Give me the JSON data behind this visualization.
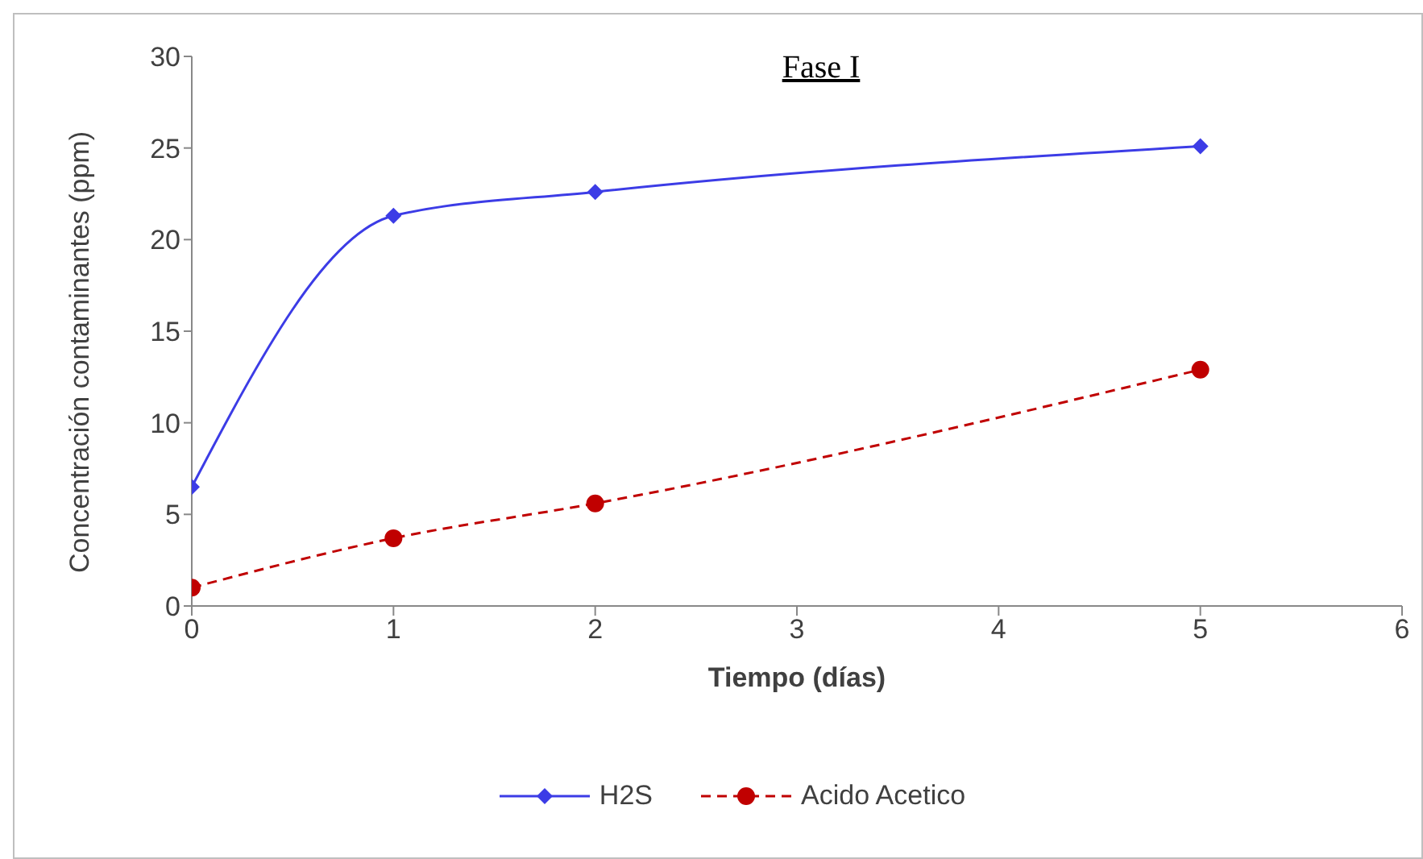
{
  "chart_data": {
    "type": "line",
    "title": "Fase I",
    "xlabel": "Tiempo (días)",
    "ylabel": "Concentración contaminantes (ppm)",
    "x": [
      0,
      1,
      2,
      5
    ],
    "series": [
      {
        "name": "H2S",
        "color": "#3c3ce6",
        "values": [
          6.5,
          21.3,
          22.6,
          25.1
        ],
        "marker": "diamond",
        "line_style": "solid"
      },
      {
        "name": "Acido Acetico",
        "color": "#c00000",
        "values": [
          1.0,
          3.7,
          5.6,
          12.9
        ],
        "marker": "circle",
        "line_style": "dashed"
      }
    ],
    "xlim": [
      0,
      6
    ],
    "xticks": [
      0,
      1,
      2,
      3,
      4,
      5,
      6
    ],
    "ylim": [
      0,
      30
    ],
    "yticks": [
      0,
      5,
      10,
      15,
      20,
      25,
      30
    ],
    "grid": false,
    "legend": "bottom"
  }
}
